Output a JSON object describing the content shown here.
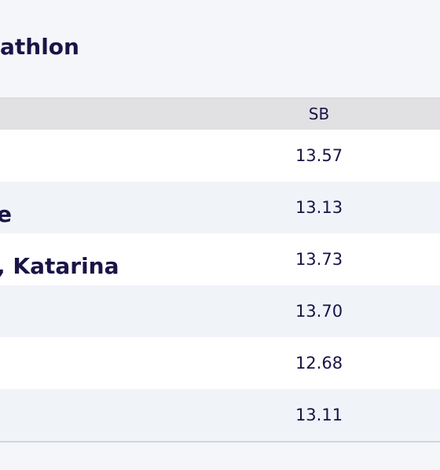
{
  "header": {
    "title": "athlon"
  },
  "table": {
    "columns": [
      "SB"
    ],
    "rows": [
      {
        "sb": "13.57"
      },
      {
        "name": "e",
        "sb": "13.13"
      },
      {
        "name": ", Katarina",
        "sb": "13.73"
      },
      {
        "sb": "13.70"
      },
      {
        "sb": "12.68"
      },
      {
        "sb": "13.11"
      }
    ]
  }
}
